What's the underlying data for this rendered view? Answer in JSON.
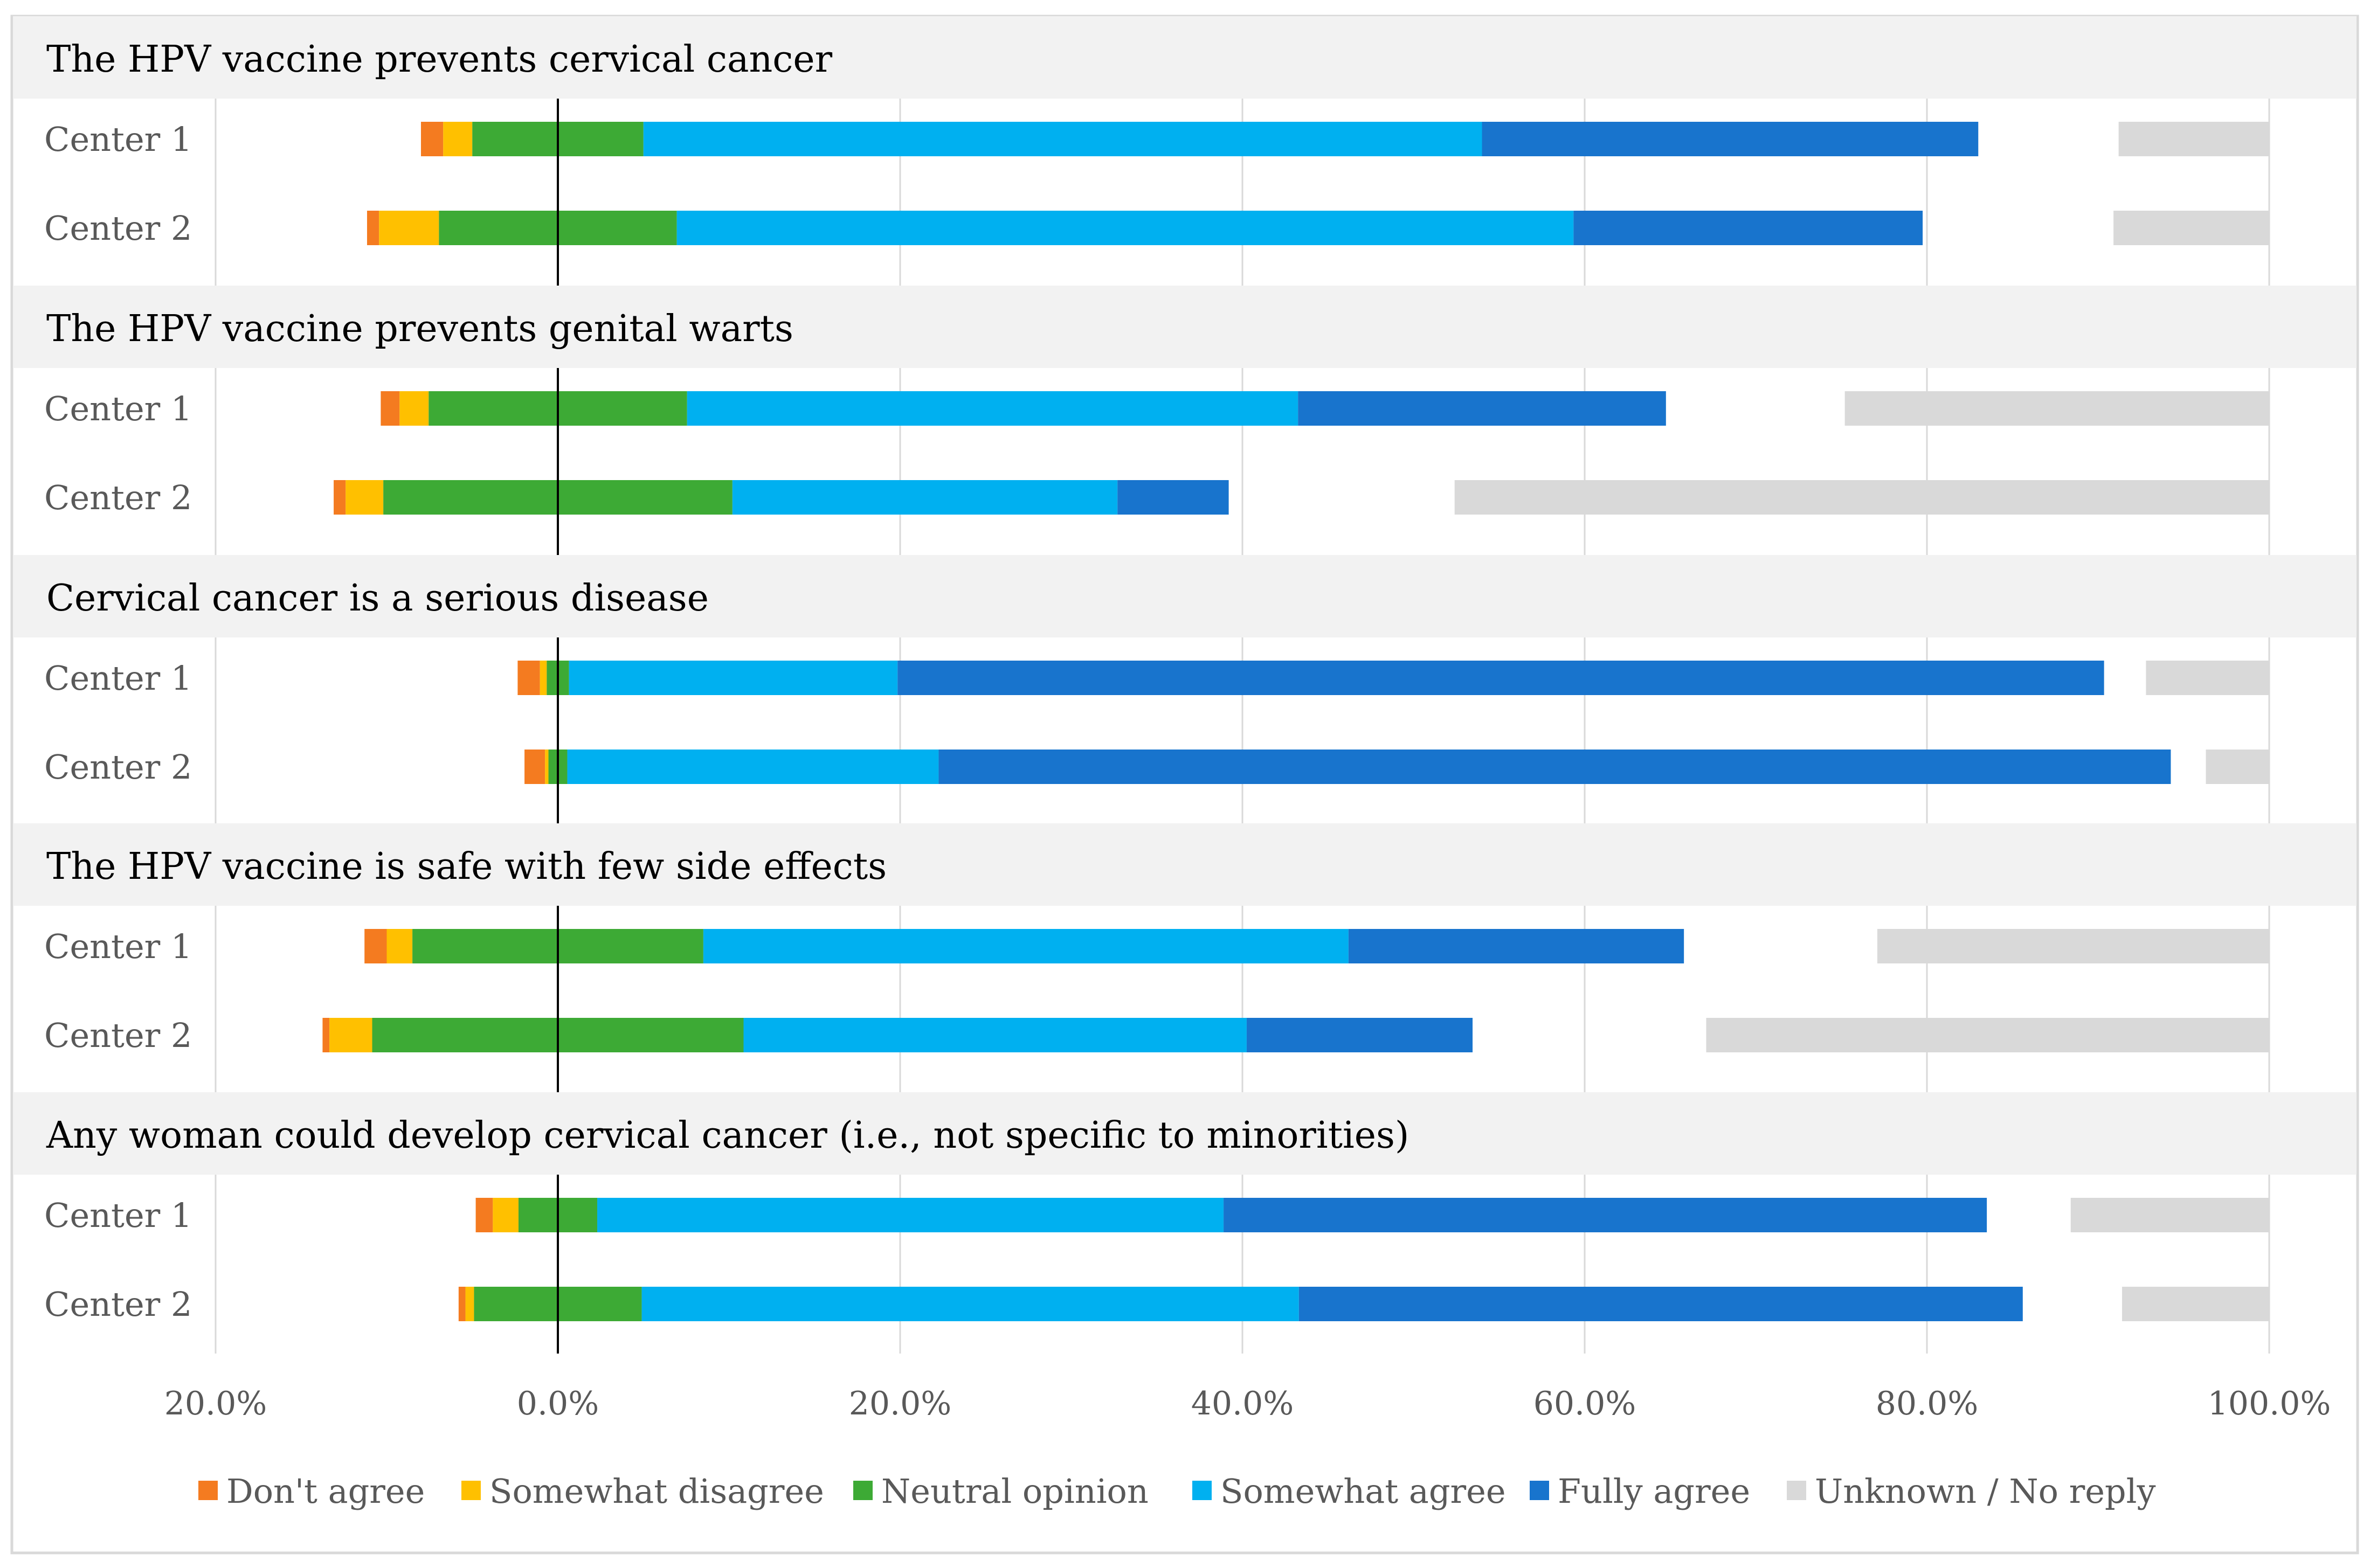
{
  "chart_data": {
    "type": "bar",
    "subtype": "diverging-stacked-horizontal",
    "title": "",
    "xlabel": "",
    "ylabel": "",
    "xlim": [
      -20,
      100
    ],
    "x_ticks": [
      -20,
      0,
      20,
      40,
      60,
      80,
      100
    ],
    "x_tick_labels": [
      "20.0%",
      "0.0%",
      "20.0%",
      "40.0%",
      "60.0%",
      "80.0%",
      "100.0%"
    ],
    "grid": true,
    "legend_position": "bottom",
    "legend": [
      {
        "key": "dont_agree",
        "label": "Don't agree",
        "color": "#F47B20"
      },
      {
        "key": "somewhat_disagree",
        "label": "Somewhat disagree",
        "color": "#FFC000"
      },
      {
        "key": "neutral",
        "label": "Neutral opinion",
        "color": "#3DAA35"
      },
      {
        "key": "somewhat_agree",
        "label": "Somewhat agree",
        "color": "#00B0F0"
      },
      {
        "key": "fully_agree",
        "label": "Fully agree",
        "color": "#1874CD"
      },
      {
        "key": "unknown",
        "label": "Unknown / No reply",
        "color": "#D9D9D9"
      }
    ],
    "groups": [
      {
        "title": "The HPV vaccine prevents cervical cancer",
        "rows": [
          {
            "label": "Center 1",
            "dont_agree": 1.3,
            "somewhat_disagree": 1.7,
            "neutral": 10.0,
            "somewhat_agree": 49.0,
            "fully_agree": 29.0,
            "unknown": 8.8
          },
          {
            "label": "Center 2",
            "dont_agree": 0.7,
            "somewhat_disagree": 3.5,
            "neutral": 13.9,
            "somewhat_agree": 52.4,
            "fully_agree": 20.4,
            "unknown": 9.1
          }
        ]
      },
      {
        "title": "The HPV vaccine prevents genital warts",
        "rows": [
          {
            "label": "Center 1",
            "dont_agree": 1.1,
            "somewhat_disagree": 1.7,
            "neutral": 15.1,
            "somewhat_agree": 35.7,
            "fully_agree": 21.5,
            "unknown": 24.8
          },
          {
            "label": "Center 2",
            "dont_agree": 0.7,
            "somewhat_disagree": 2.2,
            "neutral": 20.4,
            "somewhat_agree": 22.5,
            "fully_agree": 6.5,
            "unknown": 47.6
          }
        ]
      },
      {
        "title": "Cervical cancer is a serious disease",
        "rows": [
          {
            "label": "Center 1",
            "dont_agree": 1.3,
            "somewhat_disagree": 0.4,
            "neutral": 1.3,
            "somewhat_agree": 19.2,
            "fully_agree": 70.5,
            "unknown": 7.2
          },
          {
            "label": "Center 2",
            "dont_agree": 1.2,
            "somewhat_disagree": 0.2,
            "neutral": 1.1,
            "somewhat_agree": 21.7,
            "fully_agree": 72.0,
            "unknown": 3.7
          }
        ]
      },
      {
        "title": "The HPV vaccine is safe with few side effects",
        "rows": [
          {
            "label": "Center 1",
            "dont_agree": 1.3,
            "somewhat_disagree": 1.5,
            "neutral": 17.0,
            "somewhat_agree": 37.7,
            "fully_agree": 19.6,
            "unknown": 22.9
          },
          {
            "label": "Center 2",
            "dont_agree": 0.4,
            "somewhat_disagree": 2.5,
            "neutral": 21.7,
            "somewhat_agree": 29.4,
            "fully_agree": 13.2,
            "unknown": 32.9
          }
        ]
      },
      {
        "title": "Any woman could develop cervical cancer (i.e., not specific to minorities)",
        "rows": [
          {
            "label": "Center 1",
            "dont_agree": 1.0,
            "somewhat_disagree": 1.5,
            "neutral": 4.6,
            "somewhat_agree": 36.6,
            "fully_agree": 44.6,
            "unknown": 11.6
          },
          {
            "label": "Center 2",
            "dont_agree": 0.4,
            "somewhat_disagree": 0.5,
            "neutral": 9.8,
            "somewhat_agree": 38.4,
            "fully_agree": 42.3,
            "unknown": 8.6
          }
        ]
      }
    ]
  }
}
